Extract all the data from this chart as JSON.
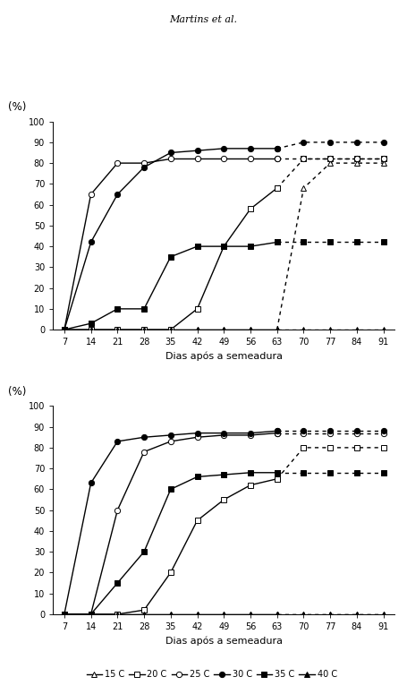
{
  "title": "Martins et al.",
  "xlabel": "Dias após a semeadura",
  "x_solid": [
    7,
    14,
    21,
    28,
    35,
    42,
    49,
    56,
    63
  ],
  "x_dashed": [
    63,
    70,
    77,
    84,
    91
  ],
  "chartA": {
    "15C": {
      "solid": [
        0,
        0,
        0,
        0,
        0,
        0,
        0,
        0,
        0
      ],
      "dashed": [
        0,
        68,
        80,
        80,
        80
      ]
    },
    "20C": {
      "solid": [
        0,
        0,
        0,
        0,
        0,
        10,
        40,
        58,
        68
      ],
      "dashed": [
        68,
        82,
        82,
        82,
        82
      ]
    },
    "25C": {
      "solid": [
        0,
        65,
        80,
        80,
        82,
        82,
        82,
        82,
        82
      ],
      "dashed": [
        82,
        82,
        82,
        82,
        82
      ]
    },
    "30C": {
      "solid": [
        0,
        42,
        65,
        78,
        85,
        86,
        87,
        87,
        87
      ],
      "dashed": [
        87,
        90,
        90,
        90,
        90
      ]
    },
    "35C": {
      "solid": [
        0,
        3,
        10,
        10,
        35,
        40,
        40,
        40,
        42
      ],
      "dashed": [
        42,
        42,
        42,
        42,
        42
      ]
    },
    "40C": {
      "solid": [
        0,
        0,
        0,
        0,
        0,
        0,
        0,
        0,
        0
      ],
      "dashed": [
        0,
        0,
        0,
        0,
        0
      ]
    }
  },
  "chartB": {
    "15C": {
      "solid": [
        0,
        0,
        0,
        0,
        0,
        0,
        0,
        0,
        0
      ],
      "dashed": [
        0,
        0,
        0,
        0,
        0
      ]
    },
    "20C": {
      "solid": [
        0,
        0,
        0,
        2,
        20,
        45,
        55,
        62,
        65
      ],
      "dashed": [
        65,
        80,
        80,
        80,
        80
      ]
    },
    "25C": {
      "solid": [
        0,
        0,
        50,
        78,
        83,
        85,
        86,
        86,
        87
      ],
      "dashed": [
        87,
        87,
        87,
        87,
        87
      ]
    },
    "30C": {
      "solid": [
        0,
        63,
        83,
        85,
        86,
        87,
        87,
        87,
        88
      ],
      "dashed": [
        88,
        88,
        88,
        88,
        88
      ]
    },
    "35C": {
      "solid": [
        0,
        0,
        15,
        30,
        60,
        66,
        67,
        68,
        68
      ],
      "dashed": [
        68,
        68,
        68,
        68,
        68
      ]
    },
    "40C": {
      "solid": [
        0,
        0,
        0,
        0,
        0,
        0,
        0,
        0,
        0
      ],
      "dashed": [
        0,
        0,
        0,
        0,
        0
      ]
    }
  },
  "series_order": [
    "15C",
    "20C",
    "25C",
    "30C",
    "35C",
    "40C"
  ],
  "series_styles": {
    "15C": {
      "marker": "^",
      "filled": false,
      "label": "15 C"
    },
    "20C": {
      "marker": "s",
      "filled": false,
      "label": "20 C"
    },
    "25C": {
      "marker": "o",
      "filled": false,
      "label": "25 C"
    },
    "30C": {
      "marker": "o",
      "filled": true,
      "label": "30 C"
    },
    "35C": {
      "marker": "s",
      "filled": true,
      "label": "35 C"
    },
    "40C": {
      "marker": "^",
      "filled": true,
      "label": "40 C"
    }
  },
  "ylim": [
    0,
    100
  ],
  "yticks": [
    0,
    10,
    20,
    30,
    40,
    50,
    60,
    70,
    80,
    90,
    100
  ],
  "xticks": [
    7,
    14,
    21,
    28,
    35,
    42,
    49,
    56,
    63,
    70,
    77,
    84,
    91
  ]
}
